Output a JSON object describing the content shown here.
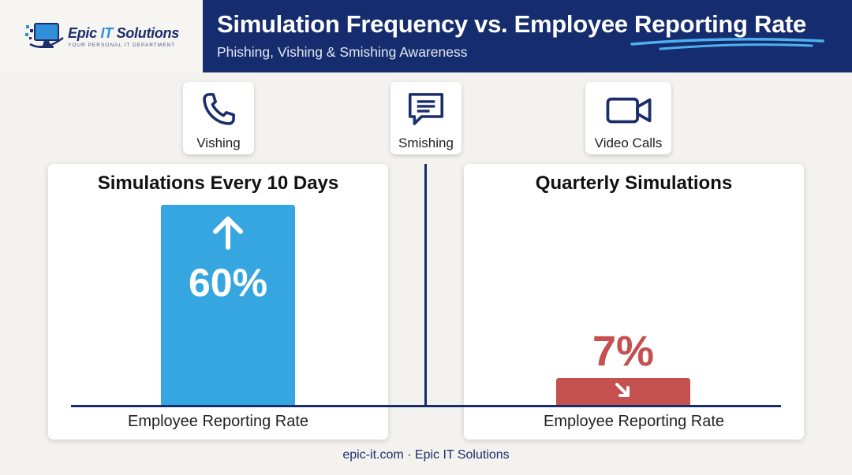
{
  "brand": {
    "name_part1": "Epic",
    "name_part2": "IT",
    "name_part3": "Solutions",
    "tagline": "YOUR PERSONAL IT DEPARTMENT"
  },
  "header": {
    "title": "Simulation Frequency vs. Employee Reporting Rate",
    "subtitle": "Phishing, Vishing & Smishing Awareness"
  },
  "tiles": [
    {
      "label": "Vishing",
      "icon": "phone-icon"
    },
    {
      "label": "Smishing",
      "icon": "chat-icon"
    },
    {
      "label": "Video Calls",
      "icon": "video-camera-icon"
    }
  ],
  "colors": {
    "header_bg": "#152d6e",
    "bar_high": "#36a6e0",
    "bar_low": "#c4504f"
  },
  "chart_data": {
    "type": "bar",
    "title": "Simulation Frequency vs. Employee Reporting Rate",
    "subtitle": "Phishing, Vishing & Smishing Awareness",
    "categories": [
      "Simulations Every 10 Days",
      "Quarterly Simulations"
    ],
    "values": [
      60,
      7
    ],
    "value_labels": [
      "60%",
      "7%"
    ],
    "value_unit": "%",
    "xlabel": "Employee Reporting Rate",
    "ylim": [
      0,
      60
    ],
    "trend_icons": [
      "arrow-up-icon",
      "arrow-down-right-icon"
    ],
    "grid": false
  },
  "footer": {
    "text": "epic-it.com · Epic IT Solutions"
  }
}
